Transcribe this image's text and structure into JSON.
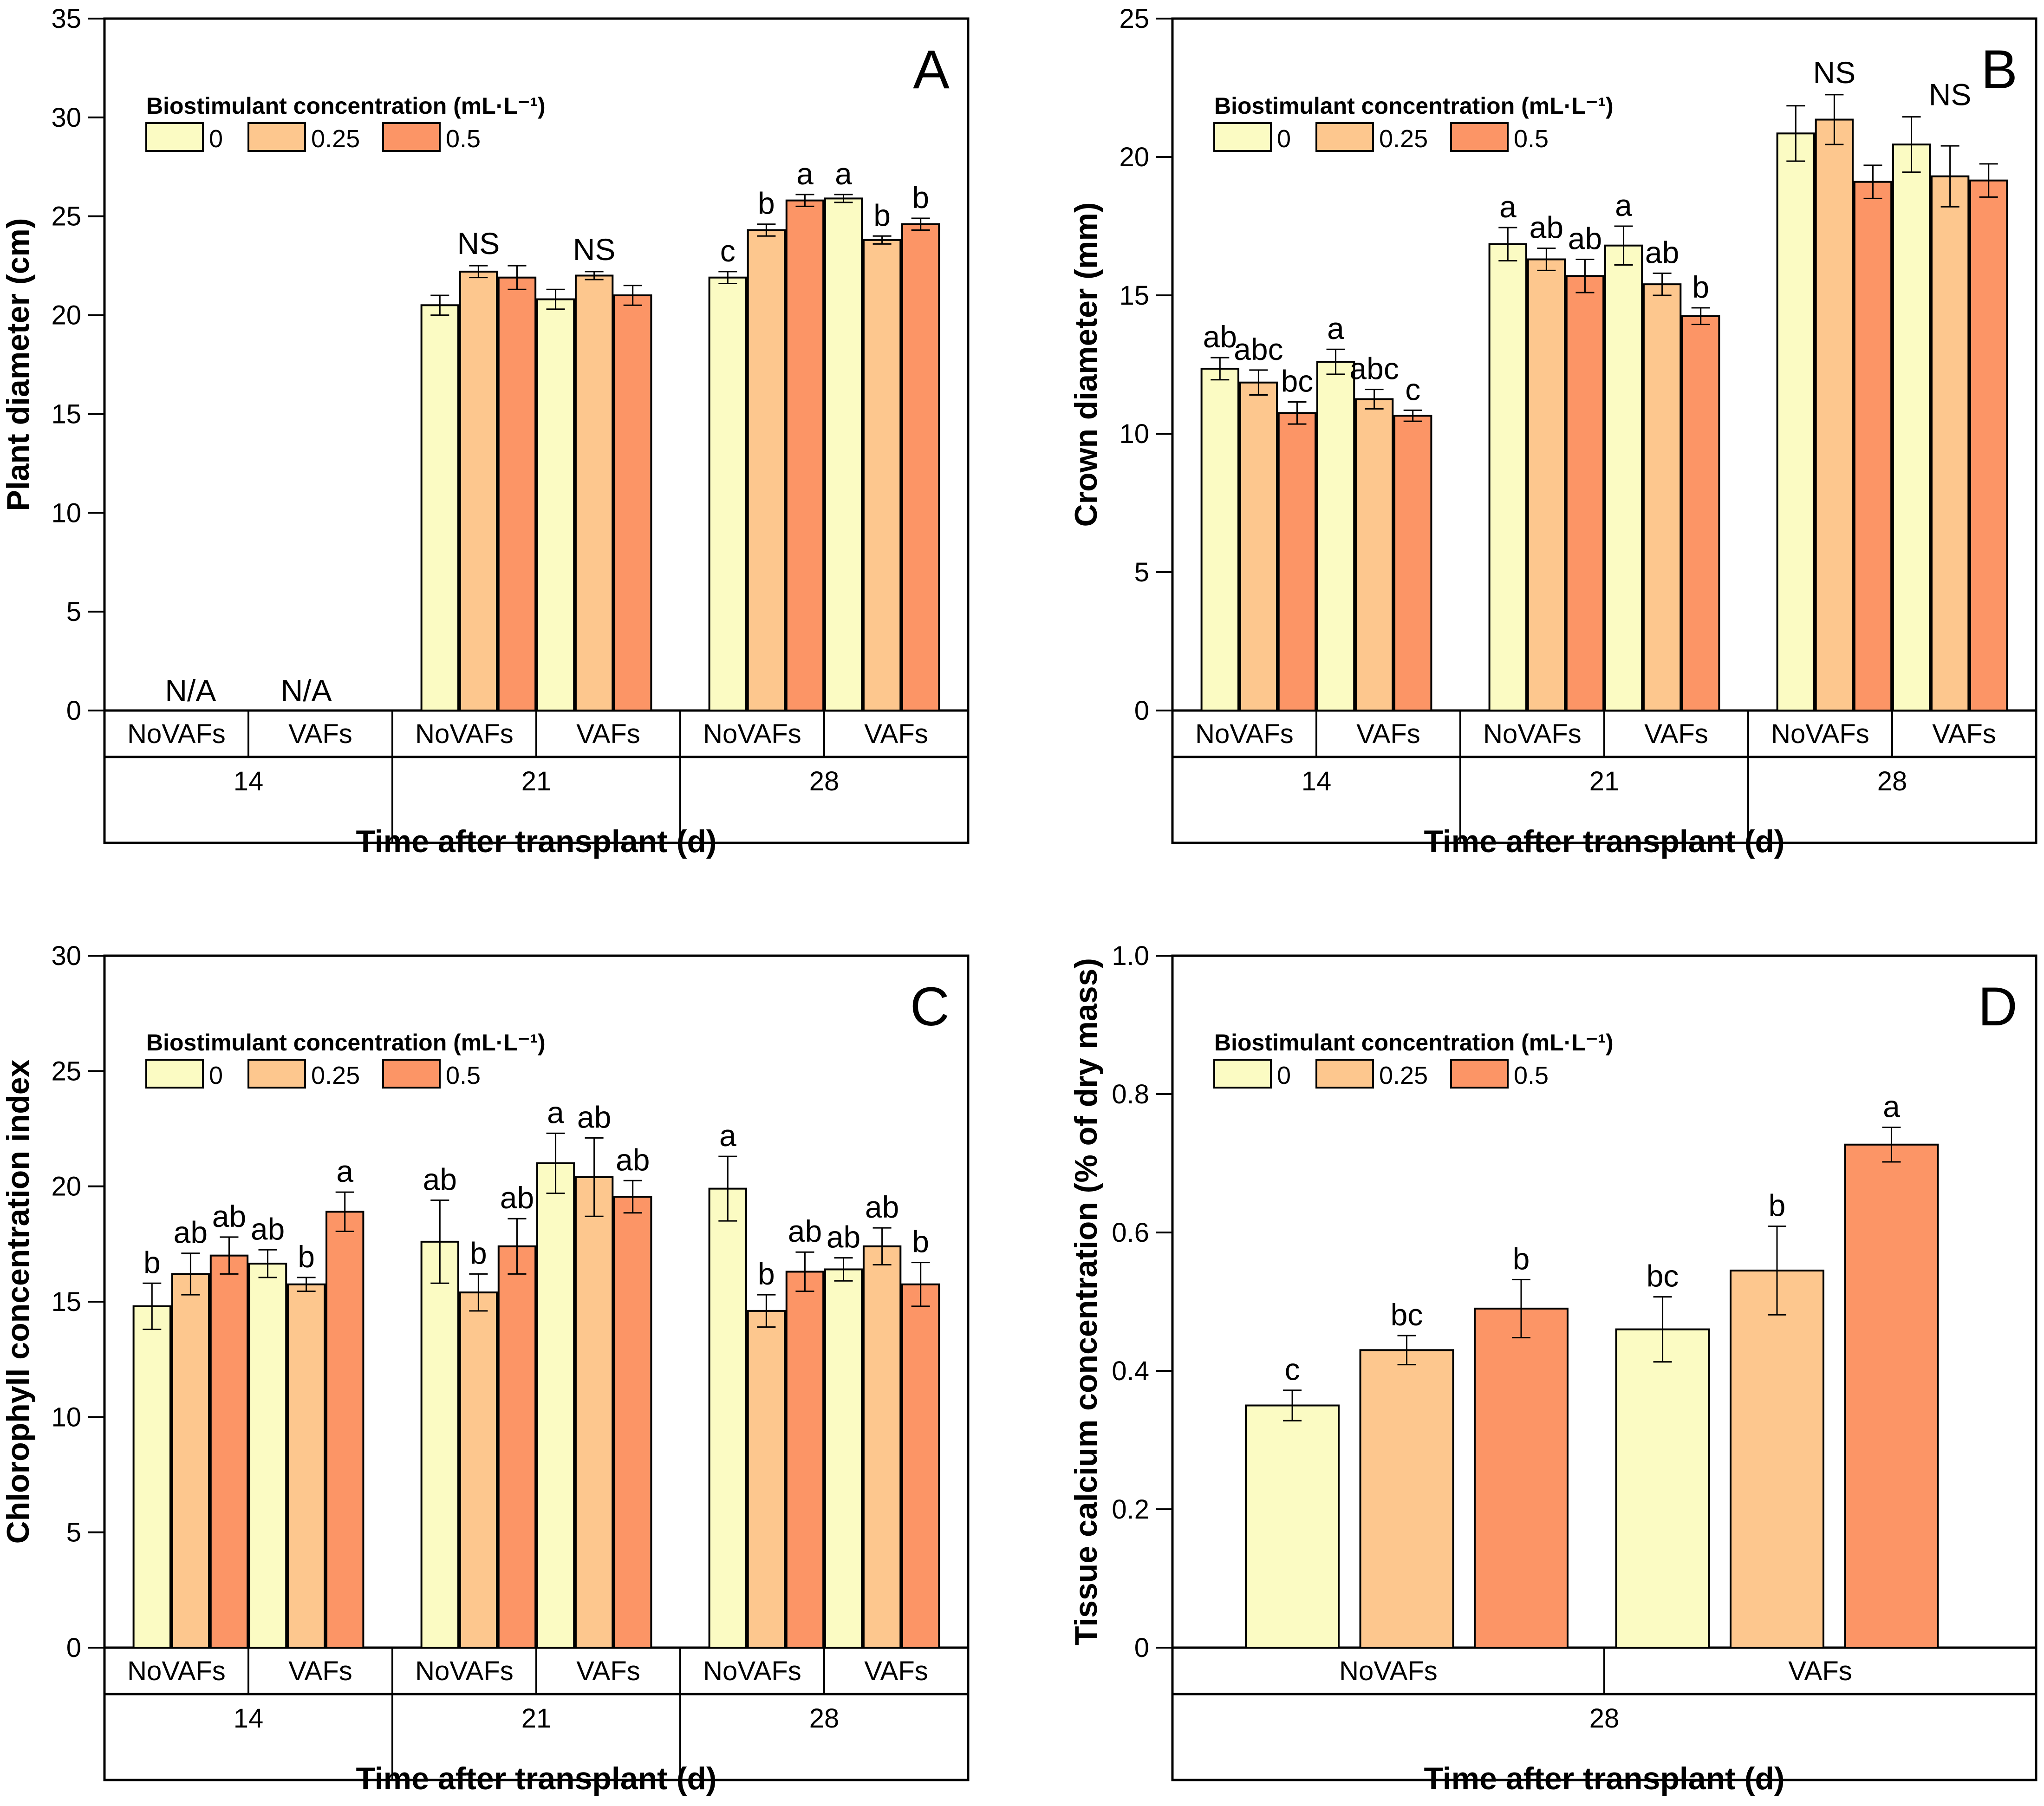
{
  "figure": {
    "legend": {
      "title": "Biostimulant concentration (mL·L⁻¹)",
      "entries": [
        {
          "label": "0",
          "color": "#FBFBC3"
        },
        {
          "label": "0.25",
          "color": "#FDC78E"
        },
        {
          "label": "0.5",
          "color": "#FC9566"
        }
      ]
    }
  },
  "chart_data": [
    {
      "panel": "A",
      "type": "bar",
      "title": "",
      "ylabel": "Plant diameter (cm)",
      "xlabel": "Time after transplant (d)",
      "ylim": [
        0,
        35
      ],
      "yticks": [
        "0",
        "5",
        "10",
        "15",
        "20",
        "25",
        "30",
        "35"
      ],
      "ytick_values": [
        0,
        5,
        10,
        15,
        20,
        25,
        30,
        35
      ],
      "time_groups": [
        "14",
        "21",
        "28"
      ],
      "treatments": [
        "NoVAFs",
        "VAFs"
      ],
      "series_names": [
        "0",
        "0.25",
        "0.5"
      ],
      "groups": [
        {
          "time": "14",
          "treatment": "NoVAFs",
          "values": [
            null,
            null,
            null
          ],
          "errors": [
            null,
            null,
            null
          ],
          "letters": [],
          "note": "N/A"
        },
        {
          "time": "14",
          "treatment": "VAFs",
          "values": [
            null,
            null,
            null
          ],
          "errors": [
            null,
            null,
            null
          ],
          "letters": [],
          "note": "N/A"
        },
        {
          "time": "21",
          "treatment": "NoVAFs",
          "values": [
            20.5,
            22.2,
            21.9
          ],
          "errors": [
            0.5,
            0.3,
            0.6
          ],
          "letters": [],
          "note": "NS"
        },
        {
          "time": "21",
          "treatment": "VAFs",
          "values": [
            20.8,
            22.0,
            21.0
          ],
          "errors": [
            0.5,
            0.2,
            0.5
          ],
          "letters": [],
          "note": "NS"
        },
        {
          "time": "28",
          "treatment": "NoVAFs",
          "values": [
            21.9,
            24.3,
            25.8
          ],
          "errors": [
            0.3,
            0.3,
            0.3
          ],
          "letters": [
            "c",
            "b",
            "a"
          ],
          "note": ""
        },
        {
          "time": "28",
          "treatment": "VAFs",
          "values": [
            25.9,
            23.8,
            24.6
          ],
          "errors": [
            0.2,
            0.2,
            0.3
          ],
          "letters": [
            "a",
            "b",
            "b"
          ],
          "note": ""
        }
      ]
    },
    {
      "panel": "B",
      "type": "bar",
      "title": "",
      "ylabel": "Crown diameter (mm)",
      "xlabel": "Time after transplant (d)",
      "ylim": [
        0,
        25
      ],
      "yticks": [
        "0",
        "5",
        "10",
        "15",
        "20",
        "25"
      ],
      "ytick_values": [
        0,
        5,
        10,
        15,
        20,
        25
      ],
      "time_groups": [
        "14",
        "21",
        "28"
      ],
      "treatments": [
        "NoVAFs",
        "VAFs"
      ],
      "series_names": [
        "0",
        "0.25",
        "0.5"
      ],
      "groups": [
        {
          "time": "14",
          "treatment": "NoVAFs",
          "values": [
            12.35,
            11.85,
            10.75
          ],
          "errors": [
            0.4,
            0.45,
            0.4
          ],
          "letters": [
            "ab",
            "abc",
            "bc"
          ],
          "note": ""
        },
        {
          "time": "14",
          "treatment": "VAFs",
          "values": [
            12.6,
            11.25,
            10.65
          ],
          "errors": [
            0.45,
            0.35,
            0.2
          ],
          "letters": [
            "a",
            "abc",
            "c"
          ],
          "note": ""
        },
        {
          "time": "21",
          "treatment": "NoVAFs",
          "values": [
            16.85,
            16.3,
            15.7
          ],
          "errors": [
            0.6,
            0.4,
            0.6
          ],
          "letters": [
            "a",
            "ab",
            "ab"
          ],
          "note": ""
        },
        {
          "time": "21",
          "treatment": "VAFs",
          "values": [
            16.8,
            15.4,
            14.25
          ],
          "errors": [
            0.7,
            0.4,
            0.3
          ],
          "letters": [
            "a",
            "ab",
            "b"
          ],
          "note": ""
        },
        {
          "time": "28",
          "treatment": "NoVAFs",
          "values": [
            20.85,
            21.35,
            19.1
          ],
          "errors": [
            1.0,
            0.9,
            0.6
          ],
          "letters": [],
          "note": "NS"
        },
        {
          "time": "28",
          "treatment": "VAFs",
          "values": [
            20.45,
            19.3,
            19.15
          ],
          "errors": [
            1.0,
            1.1,
            0.6
          ],
          "letters": [],
          "note": "NS"
        }
      ]
    },
    {
      "panel": "C",
      "type": "bar",
      "title": "",
      "ylabel": "Chlorophyll concentration index",
      "xlabel": "Time after transplant (d)",
      "ylim": [
        0,
        30
      ],
      "yticks": [
        "0",
        "5",
        "10",
        "15",
        "20",
        "25",
        "30"
      ],
      "ytick_values": [
        0,
        5,
        10,
        15,
        20,
        25,
        30
      ],
      "time_groups": [
        "14",
        "21",
        "28"
      ],
      "treatments": [
        "NoVAFs",
        "VAFs"
      ],
      "series_names": [
        "0",
        "0.25",
        "0.5"
      ],
      "groups": [
        {
          "time": "14",
          "treatment": "NoVAFs",
          "values": [
            14.8,
            16.2,
            17.0
          ],
          "errors": [
            1.0,
            0.9,
            0.8
          ],
          "letters": [
            "b",
            "ab",
            "ab"
          ],
          "note": ""
        },
        {
          "time": "14",
          "treatment": "VAFs",
          "values": [
            16.65,
            15.75,
            18.9
          ],
          "errors": [
            0.6,
            0.3,
            0.85
          ],
          "letters": [
            "ab",
            "b",
            "a"
          ],
          "note": ""
        },
        {
          "time": "21",
          "treatment": "NoVAFs",
          "values": [
            17.6,
            15.4,
            17.4
          ],
          "errors": [
            1.8,
            0.8,
            1.2
          ],
          "letters": [
            "ab",
            "b",
            "ab"
          ],
          "note": ""
        },
        {
          "time": "21",
          "treatment": "VAFs",
          "values": [
            21.0,
            20.4,
            19.55
          ],
          "errors": [
            1.3,
            1.7,
            0.7
          ],
          "letters": [
            "a",
            "ab",
            "ab"
          ],
          "note": ""
        },
        {
          "time": "28",
          "treatment": "NoVAFs",
          "values": [
            19.9,
            14.6,
            16.3
          ],
          "errors": [
            1.4,
            0.7,
            0.85
          ],
          "letters": [
            "a",
            "b",
            "ab"
          ],
          "note": ""
        },
        {
          "time": "28",
          "treatment": "VAFs",
          "values": [
            16.4,
            17.4,
            15.75
          ],
          "errors": [
            0.5,
            0.8,
            0.95
          ],
          "letters": [
            "ab",
            "ab",
            "b"
          ],
          "note": ""
        }
      ]
    },
    {
      "panel": "D",
      "type": "bar",
      "title": "",
      "ylabel": "Tissue calcium concentration (% of dry mass)",
      "xlabel": "Time after transplant (d)",
      "ylim": [
        0,
        1.0
      ],
      "yticks": [
        "0",
        "0.2",
        "0.4",
        "0.6",
        "0.8",
        "1.0"
      ],
      "ytick_values": [
        0,
        0.2,
        0.4,
        0.6,
        0.8,
        1.0
      ],
      "time_groups": [
        "28"
      ],
      "treatments": [
        "NoVAFs",
        "VAFs"
      ],
      "series_names": [
        "0",
        "0.25",
        "0.5"
      ],
      "groups": [
        {
          "time": "28",
          "treatment": "NoVAFs",
          "values": [
            0.35,
            0.43,
            0.49
          ],
          "errors": [
            0.022,
            0.021,
            0.042
          ],
          "letters": [
            "c",
            "bc",
            "b"
          ],
          "note": ""
        },
        {
          "time": "28",
          "treatment": "VAFs",
          "values": [
            0.46,
            0.545,
            0.727
          ],
          "errors": [
            0.047,
            0.064,
            0.025
          ],
          "letters": [
            "bc",
            "b",
            "a"
          ],
          "note": ""
        }
      ]
    }
  ]
}
